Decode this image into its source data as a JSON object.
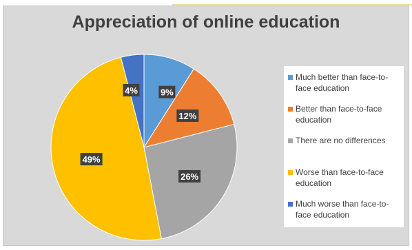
{
  "chart_data": {
    "type": "pie",
    "title": "Appreciation of online education",
    "categories": [
      "Much better than face-to-face education",
      "Better than face-to-face education",
      "There are no differences",
      "Worse than face-to-face education",
      "Much worse than face-to-face education"
    ],
    "values": [
      9,
      12,
      26,
      49,
      4
    ],
    "data_labels": [
      "9%",
      "12%",
      "26%",
      "49%",
      "4%"
    ],
    "colors": [
      "#5b9bd5",
      "#ed7d31",
      "#a5a5a5",
      "#ffc000",
      "#4472c4"
    ],
    "legend_position": "right"
  }
}
